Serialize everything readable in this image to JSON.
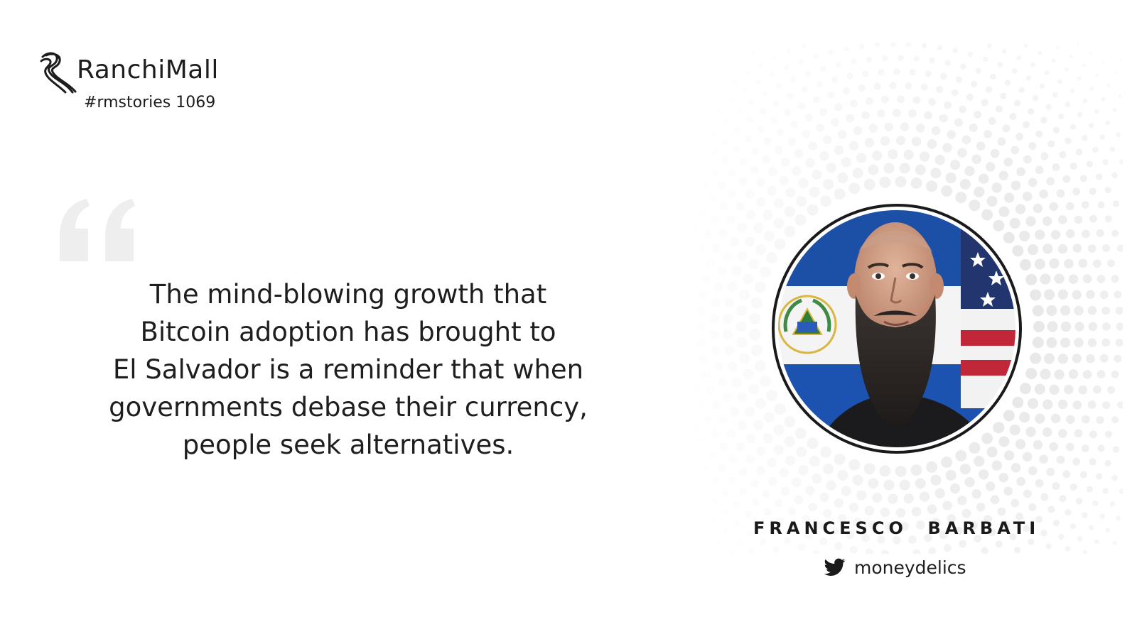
{
  "brand": {
    "name": "RanchiMall",
    "tag": "#rmstories 1069",
    "logo_icon": "ranchimall-logo-icon"
  },
  "quote": {
    "mark_icon": "open-quote-icon",
    "lines": [
      "The mind-blowing growth that",
      "Bitcoin adoption has brought to",
      "El Salvador is a reminder that when",
      "governments debase their currency,",
      "people seek alternatives."
    ],
    "color": "#1e1e1e",
    "mark_color": "#eeeeee"
  },
  "speaker": {
    "name": "FRANCESCO  BARBATI",
    "handle": "moneydelics",
    "handle_icon": "twitter-icon",
    "portrait_icon": "speaker-portrait"
  },
  "colors": {
    "background": "#ffffff",
    "halo_dots": "#e6e6e6",
    "portrait_ring": "#1a1a1a"
  }
}
